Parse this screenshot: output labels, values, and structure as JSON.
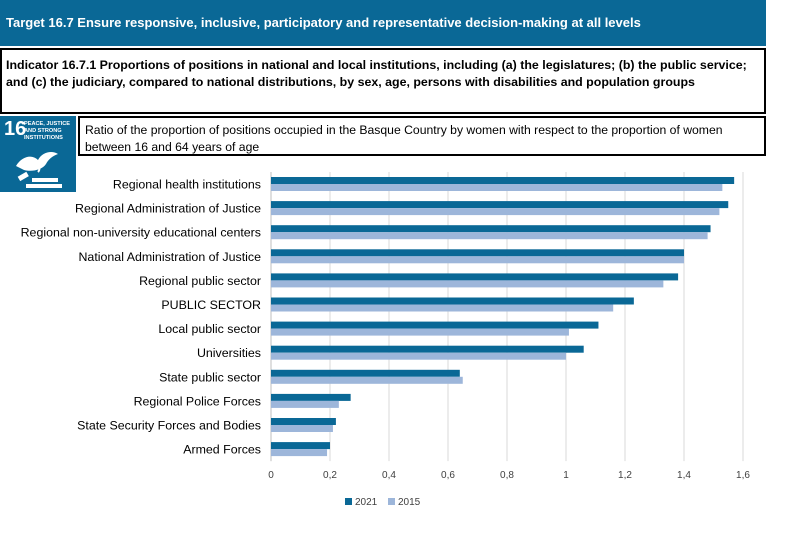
{
  "header": {
    "target": "Target 16.7 Ensure responsive, inclusive, participatory and representative decision-making at all levels",
    "indicator": "Indicator 16.7.1 Proportions of positions in national and local institutions, including (a) the legislatures; (b) the public service; and (c) the judiciary, compared to national distributions, by sex, age, persons with disabilities and population groups",
    "description": "Ratio of the proportion of positions occupied in the Basque Country by women with respect to the proportion of women between 16 and 64 years of age"
  },
  "sdg_icon": {
    "number": "16",
    "text": "PEACE, JUSTICE AND STRONG INSTITUTIONS",
    "icon": "dove-gavel-icon"
  },
  "colors": {
    "header_bg": "#0a6896",
    "series_2021": "#0a6896",
    "series_2015": "#9db6da"
  },
  "chart_data": {
    "type": "bar",
    "orientation": "horizontal",
    "title": "",
    "xlabel": "",
    "ylabel": "",
    "xlim": [
      0,
      1.6
    ],
    "ticks": [
      "0",
      "0,2",
      "0,4",
      "0,6",
      "0,8",
      "1",
      "1,2",
      "1,4",
      "1,6"
    ],
    "grid": true,
    "legend": "bottom",
    "categories": [
      "Regional health institutions",
      "Regional Administration of Justice",
      "Regional non-university educational centers",
      "National Administration of Justice",
      "Regional public sector",
      "PUBLIC SECTOR",
      "Local public sector",
      "Universities",
      "State public sector",
      "Regional Police Forces",
      "State Security Forces and Bodies",
      "Armed Forces"
    ],
    "series": [
      {
        "name": "2021",
        "values": [
          1.57,
          1.55,
          1.49,
          1.4,
          1.38,
          1.23,
          1.11,
          1.06,
          0.64,
          0.27,
          0.22,
          0.2
        ]
      },
      {
        "name": "2015",
        "values": [
          1.53,
          1.52,
          1.48,
          1.4,
          1.33,
          1.16,
          1.01,
          1.0,
          0.65,
          0.23,
          0.21,
          0.19
        ]
      }
    ]
  }
}
